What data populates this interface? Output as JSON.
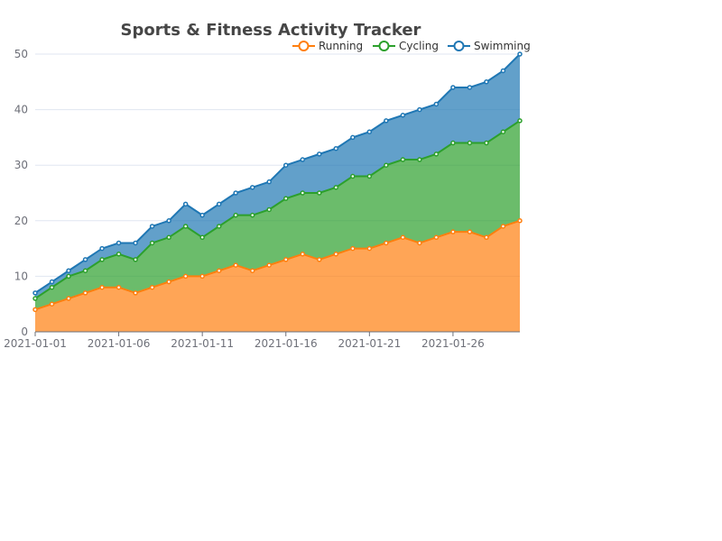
{
  "chart_data": {
    "type": "area",
    "stacked": true,
    "title": "Sports & Fitness Activity Tracker",
    "xlabel": "",
    "ylabel": "",
    "ylim": [
      0,
      50
    ],
    "y_ticks": [
      0,
      10,
      20,
      30,
      40,
      50
    ],
    "grid": true,
    "legend_position": "top-right",
    "x": [
      "2021-01-01",
      "2021-01-02",
      "2021-01-03",
      "2021-01-04",
      "2021-01-05",
      "2021-01-06",
      "2021-01-07",
      "2021-01-08",
      "2021-01-09",
      "2021-01-10",
      "2021-01-11",
      "2021-01-12",
      "2021-01-13",
      "2021-01-14",
      "2021-01-15",
      "2021-01-16",
      "2021-01-17",
      "2021-01-18",
      "2021-01-19",
      "2021-01-20",
      "2021-01-21",
      "2021-01-22",
      "2021-01-23",
      "2021-01-24",
      "2021-01-25",
      "2021-01-26",
      "2021-01-27",
      "2021-01-28",
      "2021-01-29",
      "2021-01-30"
    ],
    "x_tick_labels": [
      "2021-01-01",
      "2021-01-06",
      "2021-01-11",
      "2021-01-16",
      "2021-01-21",
      "2021-01-26"
    ],
    "series": [
      {
        "name": "Running",
        "color": "#ff7f0e",
        "values": [
          4,
          5,
          6,
          7,
          8,
          8,
          7,
          8,
          9,
          10,
          10,
          11,
          12,
          11,
          12,
          13,
          14,
          13,
          14,
          15,
          15,
          16,
          17,
          16,
          17,
          18,
          18,
          17,
          19,
          20
        ]
      },
      {
        "name": "Cycling",
        "color": "#2ca02c",
        "values": [
          2,
          3,
          4,
          4,
          5,
          6,
          6,
          8,
          8,
          9,
          7,
          8,
          9,
          10,
          10,
          11,
          11,
          12,
          12,
          13,
          13,
          14,
          14,
          15,
          15,
          16,
          16,
          17,
          17,
          18
        ]
      },
      {
        "name": "Swimming",
        "color": "#1f77b4",
        "values": [
          1,
          1,
          1,
          2,
          2,
          2,
          3,
          3,
          3,
          4,
          4,
          4,
          4,
          5,
          5,
          6,
          6,
          7,
          7,
          7,
          8,
          8,
          8,
          9,
          9,
          10,
          10,
          11,
          11,
          12
        ]
      }
    ]
  }
}
